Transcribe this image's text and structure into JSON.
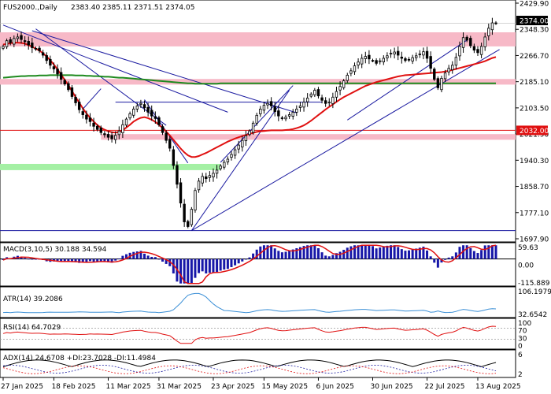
{
  "header": {
    "symbol": "FUS2000.,Daily",
    "ohlc": "2383.40 2385.11 2371.51 2374.05"
  },
  "chart_data": {
    "type": "candlestick",
    "price_axis": {
      "ticks": [
        "2429.90",
        "2348.30",
        "2266.70",
        "2185.10",
        "2103.50",
        "2021.90",
        "1940.30",
        "1858.70",
        "1777.10",
        "1697.90"
      ],
      "ylim": [
        1686,
        2438
      ],
      "last_price_label": "2374.00",
      "marked_level_label": "2032.00",
      "marked_level": 2032
    },
    "x_axis": {
      "labels": [
        "27 Jan 2025",
        "18 Feb 2025",
        "11 Mar 2025",
        "31 Mar 2025",
        "23 Apr 2025",
        "15 May 2025",
        "6 Jun 2025",
        "30 Jun 2025",
        "22 Jul 2025",
        "13 Aug 2025"
      ]
    },
    "colors": {
      "bull_bear": "#000000",
      "ma_fast": "#e01010",
      "ma_slow": "#1e8a1e",
      "trendline": "#1a1aa0",
      "resistance_zone": "#f7b9c7",
      "support_zone": "#a4f0a4",
      "macd_hist": "#1717a8",
      "macd_signal": "#e01010",
      "atr": "#3a8fd6",
      "rsi": "#e01010",
      "adx": "#000000"
    },
    "series": [
      {
        "name": "Price",
        "values": [
          2300,
          2318,
          2312,
          2325,
          2330,
          2322,
          2315,
          2305,
          2296,
          2292,
          2286,
          2272,
          2255,
          2240,
          2228,
          2212,
          2195,
          2180,
          2162,
          2140,
          2120,
          2098,
          2082,
          2068,
          2060,
          2045,
          2035,
          2025,
          2018,
          2010,
          2005,
          2016,
          2030,
          2050,
          2068,
          2085,
          2100,
          2110,
          2118,
          2104,
          2090,
          2078,
          2070,
          2050,
          2025,
          2000,
          1975,
          1920,
          1860,
          1800,
          1740,
          1725,
          1780,
          1840,
          1870,
          1885,
          1878,
          1888,
          1895,
          1905,
          1918,
          1930,
          1940,
          1955,
          1970,
          1985,
          2000,
          2015,
          2030,
          2055,
          2080,
          2100,
          2112,
          2118,
          2110,
          2092,
          2078,
          2070,
          2074,
          2082,
          2090,
          2100,
          2110,
          2122,
          2135,
          2148,
          2160,
          2142,
          2128,
          2118,
          2122,
          2138,
          2156,
          2172,
          2190,
          2208,
          2222,
          2238,
          2250,
          2262,
          2268,
          2260,
          2255,
          2246,
          2254,
          2262,
          2270,
          2278,
          2282,
          2272,
          2262,
          2255,
          2258,
          2264,
          2270,
          2276,
          2283,
          2262,
          2230,
          2195,
          2168,
          2198,
          2215,
          2230,
          2240,
          2265,
          2300,
          2328,
          2320,
          2302,
          2288,
          2280,
          2300,
          2330,
          2358,
          2375,
          2374
        ]
      },
      {
        "name": "MA fast",
        "values": [
          2306,
          2308,
          2310,
          2312,
          2312,
          2311,
          2309,
          2304,
          2299,
          2293,
          2287,
          2278,
          2268,
          2256,
          2242,
          2227,
          2210,
          2193,
          2176,
          2157,
          2138,
          2120,
          2102,
          2086,
          2072,
          2060,
          2049,
          2040,
          2034,
          2029,
          2026,
          2025,
          2027,
          2032,
          2041,
          2050,
          2060,
          2067,
          2072,
          2074,
          2071,
          2066,
          2059,
          2050,
          2040,
          2028,
          2016,
          2002,
          1988,
          1974,
          1962,
          1952,
          1947,
          1947,
          1950,
          1955,
          1960,
          1966,
          1972,
          1978,
          1984,
          1990,
          1996,
          2001,
          2006,
          2010,
          2014,
          2017,
          2021,
          2024,
          2027,
          2029,
          2030,
          2031,
          2032,
          2032,
          2032,
          2032,
          2033,
          2034,
          2036,
          2039,
          2043,
          2048,
          2055,
          2063,
          2072,
          2081,
          2090,
          2099,
          2107,
          2115,
          2123,
          2131,
          2138,
          2144,
          2150,
          2156,
          2162,
          2168,
          2174,
          2178,
          2182,
          2186,
          2189,
          2192,
          2195,
          2198,
          2201,
          2204,
          2206,
          2208,
          2209,
          2210,
          2211,
          2212,
          2213,
          2214,
          2215,
          2216,
          2217,
          2218,
          2220,
          2222,
          2225,
          2228,
          2231,
          2234,
          2237,
          2240,
          2243,
          2246,
          2249,
          2253,
          2258,
          2263,
          2266
        ]
      },
      {
        "name": "MA slow",
        "values": [
          2200,
          2201,
          2202,
          2203,
          2204,
          2205,
          2205,
          2206,
          2206,
          2206,
          2207,
          2207,
          2207,
          2208,
          2208,
          2208,
          2208,
          2208,
          2208,
          2208,
          2207,
          2207,
          2207,
          2206,
          2206,
          2205,
          2205,
          2204,
          2203,
          2203,
          2202,
          2201,
          2200,
          2200,
          2199,
          2198,
          2197,
          2196,
          2195,
          2194,
          2193,
          2192,
          2191,
          2190,
          2189,
          2188,
          2187,
          2186,
          2185,
          2184,
          2183,
          2182,
          2182,
          2181,
          2181,
          2181,
          2181,
          2181,
          2181,
          2181,
          2182,
          2182,
          2182,
          2182,
          2182,
          2182,
          2182,
          2182,
          2182,
          2182,
          2182,
          2182,
          2182,
          2182,
          2182,
          2182,
          2182,
          2182,
          2182,
          2182,
          2182,
          2182,
          2182,
          2182,
          2182,
          2182,
          2182,
          2182,
          2182,
          2182,
          2182,
          2182,
          2182,
          2182,
          2182,
          2182,
          2182,
          2182,
          2182,
          2182,
          2182,
          2182,
          2182,
          2182,
          2182,
          2182,
          2182,
          2182,
          2182,
          2182,
          2182,
          2182,
          2182,
          2182,
          2182,
          2182,
          2182,
          2182,
          2182,
          2182,
          2182,
          2182,
          2182,
          2182,
          2182,
          2182,
          2182,
          2182,
          2182,
          2182,
          2182,
          2182,
          2182,
          2182,
          2182,
          2182,
          2182
        ]
      }
    ],
    "zones": [
      {
        "kind": "resistance",
        "from": 2300,
        "to": 2345
      },
      {
        "kind": "resistance",
        "from": 2178,
        "to": 2196
      },
      {
        "kind": "resistance",
        "from": 2002,
        "to": 2020
      },
      {
        "kind": "support",
        "from": 1905,
        "to": 1925
      }
    ],
    "levels": [
      1712,
      2122
    ],
    "trendlines": [
      {
        "from": [
          0,
          2368
        ],
        "to": [
          62,
          2090
        ]
      },
      {
        "from": [
          9,
          2356
        ],
        "to": [
          45,
          2048
        ]
      },
      {
        "from": [
          8,
          2350
        ],
        "to": [
          81,
          2088
        ]
      },
      {
        "from": [
          22,
          2100
        ],
        "to": [
          27,
          2165
        ]
      },
      {
        "from": [
          39,
          2130
        ],
        "to": [
          51,
          1928
        ]
      },
      {
        "from": [
          52,
          1712
        ],
        "to": [
          137,
          2290
        ]
      },
      {
        "from": [
          52,
          1712
        ],
        "to": [
          79,
          2160
        ]
      },
      {
        "from": [
          60,
          1930
        ],
        "to": [
          80,
          2175
        ]
      },
      {
        "from": [
          95,
          2065
        ],
        "to": [
          128,
          2320
        ]
      }
    ],
    "panels": [
      {
        "name": "macd",
        "label": "MACD(3,10,5) 30.188 34.594",
        "ticks": [
          "59.63",
          "0.00",
          "-115.889"
        ],
        "ylim": [
          -130,
          75
        ]
      },
      {
        "name": "atr",
        "label": "ATR(14) 39.2086",
        "ticks": [
          "106.1979",
          "32.6542"
        ],
        "ylim": [
          28,
          112
        ]
      },
      {
        "name": "rsi",
        "label": "RSI(14) 64.7029",
        "ticks": [
          "100",
          "70",
          "30",
          "0"
        ],
        "ylim": [
          0,
          100
        ]
      },
      {
        "name": "adx",
        "label": "ADX(14) 24.6708 +DI:23.7028 -DI:11.4984",
        "ticks": [
          "6",
          "2"
        ],
        "ylim": [
          0,
          8
        ]
      }
    ]
  }
}
